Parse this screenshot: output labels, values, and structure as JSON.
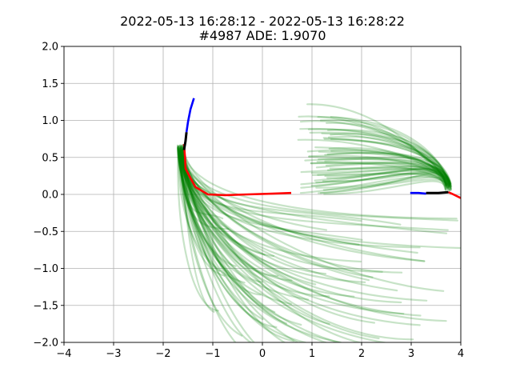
{
  "chart_data": {
    "type": "line",
    "title": "2022-05-13 16:28:12 - 2022-05-13 16:28:22",
    "subtitle": "#4987 ADE: 1.9070",
    "xlabel": "",
    "ylabel": "",
    "xlim": [
      -4,
      4
    ],
    "ylim": [
      -2,
      2
    ],
    "xticks": [
      -4,
      -3,
      -2,
      -1,
      0,
      1,
      2,
      3,
      4
    ],
    "xtick_labels": [
      "−4",
      "−3",
      "−2",
      "−1",
      "0",
      "1",
      "2",
      "3",
      "4"
    ],
    "yticks": [
      -2.0,
      -1.5,
      -1.0,
      -0.5,
      0.0,
      0.5,
      1.0,
      1.5,
      2.0
    ],
    "ytick_labels": [
      "−2.0",
      "−1.5",
      "−1.0",
      "−0.5",
      "0.0",
      "0.5",
      "1.0",
      "1.5",
      "2.0"
    ],
    "grid": true,
    "colors": {
      "history": "#0000ff",
      "current": "#000000",
      "prediction": "#ff0000",
      "samples": "#008000"
    },
    "agents": [
      {
        "history": [
          [
            -1.38,
            1.3
          ],
          [
            -1.45,
            1.15
          ],
          [
            -1.5,
            0.98
          ],
          [
            -1.53,
            0.84
          ]
        ],
        "current": [
          [
            -1.53,
            0.84
          ],
          [
            -1.55,
            0.72
          ],
          [
            -1.58,
            0.6
          ]
        ],
        "prediction": [
          [
            -1.58,
            0.68
          ],
          [
            -1.56,
            0.5
          ],
          [
            -1.55,
            0.35
          ],
          [
            -1.45,
            0.22
          ],
          [
            -1.35,
            0.1
          ],
          [
            -1.1,
            0.0
          ],
          [
            -0.75,
            -0.01
          ],
          [
            -0.3,
            0.0
          ],
          [
            0.2,
            0.01
          ],
          [
            0.58,
            0.02
          ]
        ],
        "samples_origin": [
          -1.65,
          0.62
        ],
        "samples_fan": {
          "count": 70,
          "start": [
            -1.65,
            0.62
          ],
          "end_x_range": [
            -1.0,
            4.0
          ],
          "end_y_range": [
            -2.4,
            -0.28
          ]
        }
      },
      {
        "history": [
          [
            2.98,
            0.02
          ],
          [
            3.15,
            0.02
          ],
          [
            3.3,
            0.01
          ]
        ],
        "current": [
          [
            3.3,
            0.02
          ],
          [
            3.55,
            0.02
          ],
          [
            3.75,
            0.03
          ]
        ],
        "prediction": [
          [
            3.75,
            0.03
          ],
          [
            3.85,
            0.0
          ],
          [
            4.0,
            -0.05
          ]
        ],
        "samples_origin": [
          3.75,
          0.1
        ],
        "samples_fan": {
          "count": 55,
          "start": [
            3.75,
            0.1
          ],
          "end_x_range": [
            0.7,
            1.4
          ],
          "end_y_range": [
            0.0,
            1.25
          ]
        }
      }
    ]
  }
}
